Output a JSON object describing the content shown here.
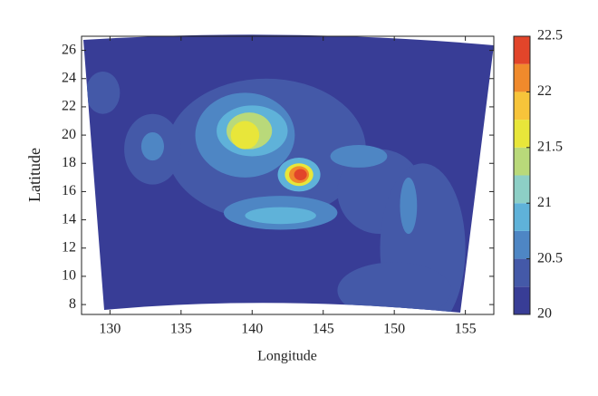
{
  "chart_data": {
    "type": "contour",
    "xlabel": "Longitude",
    "ylabel": "Latitude",
    "xlim": [
      128,
      157
    ],
    "ylim": [
      7.3,
      27
    ],
    "xticks": [
      130,
      135,
      140,
      145,
      150,
      155
    ],
    "yticks": [
      8,
      10,
      12,
      14,
      16,
      18,
      20,
      22,
      24,
      26
    ],
    "levels": [
      20,
      20.25,
      20.5,
      20.75,
      21,
      21.25,
      21.5,
      21.75,
      22,
      22.25,
      22.5
    ],
    "colors": [
      "#383d96",
      "#4459a8",
      "#4e86c4",
      "#5fb2d9",
      "#8dcfc6",
      "#b9d97a",
      "#e8e63a",
      "#f7c43a",
      "#f08a2c",
      "#e2452a"
    ],
    "colorbar_ticks": [
      20,
      20.5,
      21,
      21.5,
      22,
      22.5
    ],
    "contours": [
      {
        "x": 141,
        "y": 19,
        "rx": 7,
        "ry": 5,
        "value": 20.25
      },
      {
        "x": 133,
        "y": 19,
        "rx": 2,
        "ry": 2.5,
        "value": 20.25
      },
      {
        "x": 129.5,
        "y": 23,
        "rx": 1.2,
        "ry": 1.5,
        "value": 20.25
      },
      {
        "x": 149,
        "y": 16,
        "rx": 3,
        "ry": 3,
        "value": 20.25
      },
      {
        "x": 152,
        "y": 12,
        "rx": 3,
        "ry": 6,
        "value": 20.25
      },
      {
        "x": 150,
        "y": 9,
        "rx": 4,
        "ry": 2,
        "value": 20.25
      },
      {
        "x": 139.5,
        "y": 20,
        "rx": 3.5,
        "ry": 3,
        "value": 20.5
      },
      {
        "x": 133,
        "y": 19.2,
        "rx": 0.8,
        "ry": 1,
        "value": 20.5
      },
      {
        "x": 142,
        "y": 14.5,
        "rx": 4,
        "ry": 1.2,
        "value": 20.5
      },
      {
        "x": 147.5,
        "y": 18.5,
        "rx": 2,
        "ry": 0.8,
        "value": 20.5
      },
      {
        "x": 151,
        "y": 15,
        "rx": 0.6,
        "ry": 2,
        "value": 20.5
      },
      {
        "x": 140,
        "y": 20.3,
        "rx": 2.5,
        "ry": 1.8,
        "value": 20.75
      },
      {
        "x": 142,
        "y": 14.3,
        "rx": 2.5,
        "ry": 0.6,
        "value": 20.75
      },
      {
        "x": 143.3,
        "y": 17.2,
        "rx": 1.5,
        "ry": 1.2,
        "value": 20.75
      },
      {
        "x": 139.8,
        "y": 20.3,
        "rx": 1.6,
        "ry": 1.3,
        "value": 21.25
      },
      {
        "x": 139.5,
        "y": 20,
        "rx": 1,
        "ry": 1,
        "value": 21.5
      },
      {
        "x": 143.3,
        "y": 17.2,
        "rx": 1,
        "ry": 0.8,
        "value": 21.5
      },
      {
        "x": 143.3,
        "y": 17.2,
        "rx": 0.7,
        "ry": 0.6,
        "value": 22
      },
      {
        "x": 143.4,
        "y": 17.2,
        "rx": 0.45,
        "ry": 0.4,
        "value": 22.25
      }
    ]
  }
}
